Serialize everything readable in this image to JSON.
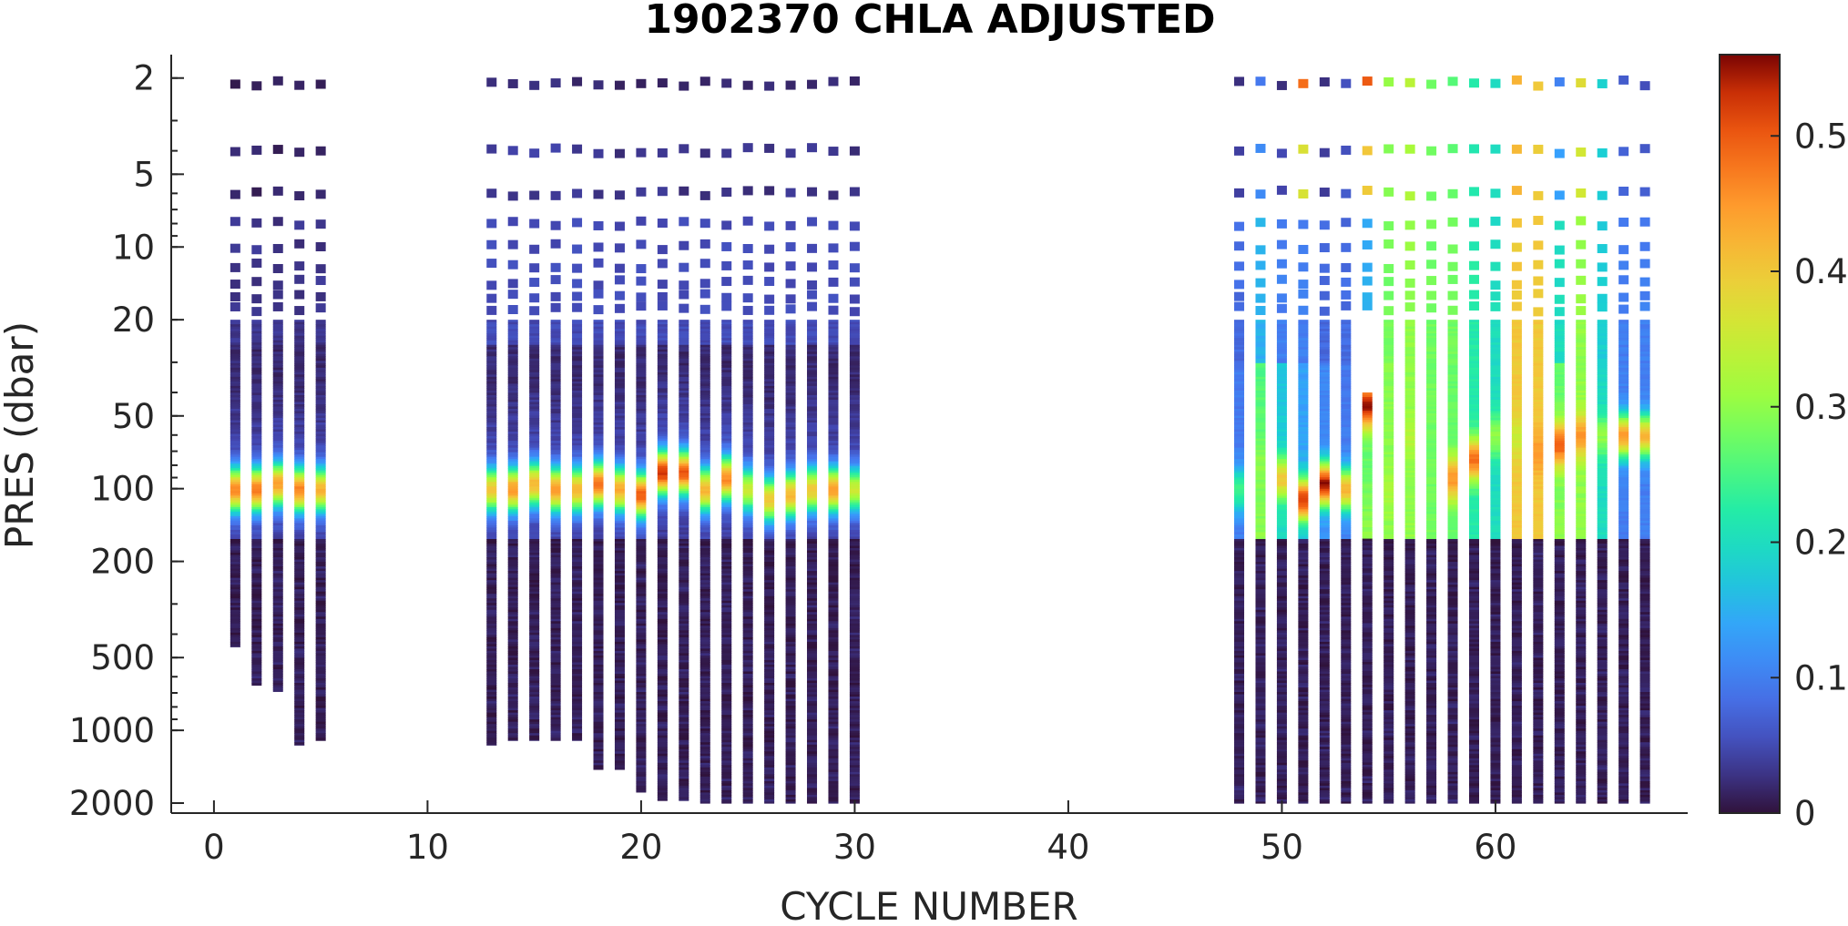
{
  "chart_data": {
    "type": "heatmap",
    "title": "1902370  CHLA ADJUSTED",
    "xlabel": "CYCLE NUMBER",
    "ylabel": "PRES (dbar)",
    "xlim": [
      -2,
      69
    ],
    "ylim": [
      1.6,
      2200
    ],
    "y_scale": "log",
    "y_direction": "reverse",
    "x_ticks": [
      0,
      10,
      20,
      30,
      40,
      50,
      60
    ],
    "x_tick_labels": [
      "0",
      "10",
      "20",
      "30",
      "40",
      "50",
      "60"
    ],
    "y_ticks": [
      2,
      5,
      10,
      20,
      50,
      100,
      200,
      500,
      1000,
      2000
    ],
    "y_tick_labels": [
      "2",
      "5",
      "10",
      "20",
      "50",
      "100",
      "200",
      "500",
      "1000",
      "2000"
    ],
    "colorbar": {
      "colormap": "turbo",
      "range": [
        0,
        0.56
      ],
      "ticks": [
        0,
        0.1,
        0.2,
        0.3,
        0.4,
        0.5
      ],
      "tick_labels": [
        "0",
        "0.1",
        "0.2",
        "0.3",
        "0.4",
        "0.5"
      ]
    },
    "profiles": [
      {
        "cycle": 1,
        "max_pres": 450,
        "top": 0.01,
        "sub": 0.03,
        "peak": 0.46,
        "peak_depth": 100,
        "ml": 0
      },
      {
        "cycle": 2,
        "max_pres": 650,
        "top": 0.01,
        "sub": 0.03,
        "peak": 0.47,
        "peak_depth": 100,
        "ml": 0
      },
      {
        "cycle": 3,
        "max_pres": 690,
        "top": 0.01,
        "sub": 0.03,
        "peak": 0.44,
        "peak_depth": 95,
        "ml": 0
      },
      {
        "cycle": 4,
        "max_pres": 1150,
        "top": 0.01,
        "sub": 0.03,
        "peak": 0.47,
        "peak_depth": 100,
        "ml": 0
      },
      {
        "cycle": 5,
        "max_pres": 1100,
        "top": 0.01,
        "sub": 0.03,
        "peak": 0.42,
        "peak_depth": 100,
        "ml": 0
      },
      {
        "cycle": 13,
        "max_pres": 1150,
        "top": 0.03,
        "sub": 0.05,
        "peak": 0.4,
        "peak_depth": 100,
        "ml": 0
      },
      {
        "cycle": 14,
        "max_pres": 1100,
        "top": 0.03,
        "sub": 0.05,
        "peak": 0.45,
        "peak_depth": 100,
        "ml": 0
      },
      {
        "cycle": 15,
        "max_pres": 1100,
        "top": 0.03,
        "sub": 0.05,
        "peak": 0.42,
        "peak_depth": 95,
        "ml": 0
      },
      {
        "cycle": 16,
        "max_pres": 1100,
        "top": 0.03,
        "sub": 0.05,
        "peak": 0.45,
        "peak_depth": 100,
        "ml": 0
      },
      {
        "cycle": 17,
        "max_pres": 1100,
        "top": 0.02,
        "sub": 0.05,
        "peak": 0.42,
        "peak_depth": 100,
        "ml": 0
      },
      {
        "cycle": 18,
        "max_pres": 1450,
        "top": 0.02,
        "sub": 0.05,
        "peak": 0.48,
        "peak_depth": 95,
        "ml": 0
      },
      {
        "cycle": 19,
        "max_pres": 1450,
        "top": 0.02,
        "sub": 0.05,
        "peak": 0.43,
        "peak_depth": 100,
        "ml": 0
      },
      {
        "cycle": 20,
        "max_pres": 1800,
        "top": 0.02,
        "sub": 0.05,
        "peak": 0.5,
        "peak_depth": 105,
        "ml": 0
      },
      {
        "cycle": 21,
        "max_pres": 1950,
        "top": 0.02,
        "sub": 0.05,
        "peak": 0.53,
        "peak_depth": 85,
        "ml": 0
      },
      {
        "cycle": 22,
        "max_pres": 1950,
        "top": 0.02,
        "sub": 0.05,
        "peak": 0.5,
        "peak_depth": 85,
        "ml": 0
      },
      {
        "cycle": 23,
        "max_pres": 2000,
        "top": 0.02,
        "sub": 0.05,
        "peak": 0.42,
        "peak_depth": 100,
        "ml": 0
      },
      {
        "cycle": 24,
        "max_pres": 2000,
        "top": 0.02,
        "sub": 0.05,
        "peak": 0.46,
        "peak_depth": 90,
        "ml": 0
      },
      {
        "cycle": 25,
        "max_pres": 2000,
        "top": 0.02,
        "sub": 0.05,
        "peak": 0.35,
        "peak_depth": 100,
        "ml": 0
      },
      {
        "cycle": 26,
        "max_pres": 2000,
        "top": 0.02,
        "sub": 0.05,
        "peak": 0.4,
        "peak_depth": 110,
        "ml": 0
      },
      {
        "cycle": 27,
        "max_pres": 2000,
        "top": 0.02,
        "sub": 0.05,
        "peak": 0.42,
        "peak_depth": 105,
        "ml": 0
      },
      {
        "cycle": 28,
        "max_pres": 2000,
        "top": 0.02,
        "sub": 0.05,
        "peak": 0.4,
        "peak_depth": 100,
        "ml": 0
      },
      {
        "cycle": 29,
        "max_pres": 2000,
        "top": 0.02,
        "sub": 0.05,
        "peak": 0.45,
        "peak_depth": 100,
        "ml": 0
      },
      {
        "cycle": 30,
        "max_pres": 2000,
        "top": 0.02,
        "sub": 0.05,
        "peak": 0.35,
        "peak_depth": 100,
        "ml": 0
      },
      {
        "cycle": 48,
        "max_pres": 2000,
        "top": 0.03,
        "sub": 0.08,
        "peak": 0.25,
        "peak_depth": 100,
        "ml": 0.1
      },
      {
        "cycle": 49,
        "max_pres": 2000,
        "top": 0.09,
        "sub": 0.15,
        "peak": 0.3,
        "peak_depth": 80,
        "ml": 0.3
      },
      {
        "cycle": 50,
        "max_pres": 2000,
        "top": 0.02,
        "sub": 0.1,
        "peak": 0.4,
        "peak_depth": 90,
        "ml": 0.2
      },
      {
        "cycle": 51,
        "max_pres": 2000,
        "top": 0.48,
        "sub": 0.1,
        "peak": 0.52,
        "peak_depth": 110,
        "ml": 0.15
      },
      {
        "cycle": 52,
        "max_pres": 2000,
        "top": 0.02,
        "sub": 0.08,
        "peak": 0.55,
        "peak_depth": 95,
        "ml": 0.12
      },
      {
        "cycle": 53,
        "max_pres": 2000,
        "top": 0.05,
        "sub": 0.08,
        "peak": 0.42,
        "peak_depth": 100,
        "ml": 0.1
      },
      {
        "cycle": 54,
        "max_pres": 2000,
        "top": 0.5,
        "sub": 0.15,
        "peak": 0.55,
        "peak_depth": 45,
        "ml": 0.3,
        "start_pres": 40
      },
      {
        "cycle": 55,
        "max_pres": 2000,
        "top": 0.3,
        "sub": 0.28,
        "peak": 0.32,
        "peak_depth": 100,
        "ml": 0.3
      },
      {
        "cycle": 56,
        "max_pres": 2000,
        "top": 0.33,
        "sub": 0.3,
        "peak": 0.33,
        "peak_depth": 60,
        "ml": 0.3
      },
      {
        "cycle": 57,
        "max_pres": 2000,
        "top": 0.28,
        "sub": 0.28,
        "peak": 0.28,
        "peak_depth": 80,
        "ml": 0.28
      },
      {
        "cycle": 58,
        "max_pres": 2000,
        "top": 0.26,
        "sub": 0.28,
        "peak": 0.45,
        "peak_depth": 90,
        "ml": 0.27
      },
      {
        "cycle": 59,
        "max_pres": 2000,
        "top": 0.22,
        "sub": 0.22,
        "peak": 0.48,
        "peak_depth": 75,
        "ml": 0.22
      },
      {
        "cycle": 60,
        "max_pres": 2000,
        "top": 0.2,
        "sub": 0.2,
        "peak": 0.3,
        "peak_depth": 60,
        "ml": 0.2
      },
      {
        "cycle": 61,
        "max_pres": 2000,
        "top": 0.42,
        "sub": 0.4,
        "peak": 0.35,
        "peak_depth": 60,
        "ml": 0.4
      },
      {
        "cycle": 62,
        "max_pres": 2000,
        "top": 0.4,
        "sub": 0.4,
        "peak": 0.45,
        "peak_depth": 70,
        "ml": 0.4
      },
      {
        "cycle": 63,
        "max_pres": 2000,
        "top": 0.1,
        "sub": 0.2,
        "peak": 0.5,
        "peak_depth": 65,
        "ml": 0.3
      },
      {
        "cycle": 64,
        "max_pres": 2000,
        "top": 0.38,
        "sub": 0.3,
        "peak": 0.45,
        "peak_depth": 60,
        "ml": 0.3
      },
      {
        "cycle": 65,
        "max_pres": 2000,
        "top": 0.18,
        "sub": 0.18,
        "peak": 0.3,
        "peak_depth": 60,
        "ml": 0.2
      },
      {
        "cycle": 66,
        "max_pres": 2000,
        "top": 0.07,
        "sub": 0.1,
        "peak": 0.45,
        "peak_depth": 60,
        "ml": 0.1
      },
      {
        "cycle": 67,
        "max_pres": 2000,
        "top": 0.05,
        "sub": 0.1,
        "peak": 0.42,
        "peak_depth": 60,
        "ml": 0.1
      }
    ]
  }
}
